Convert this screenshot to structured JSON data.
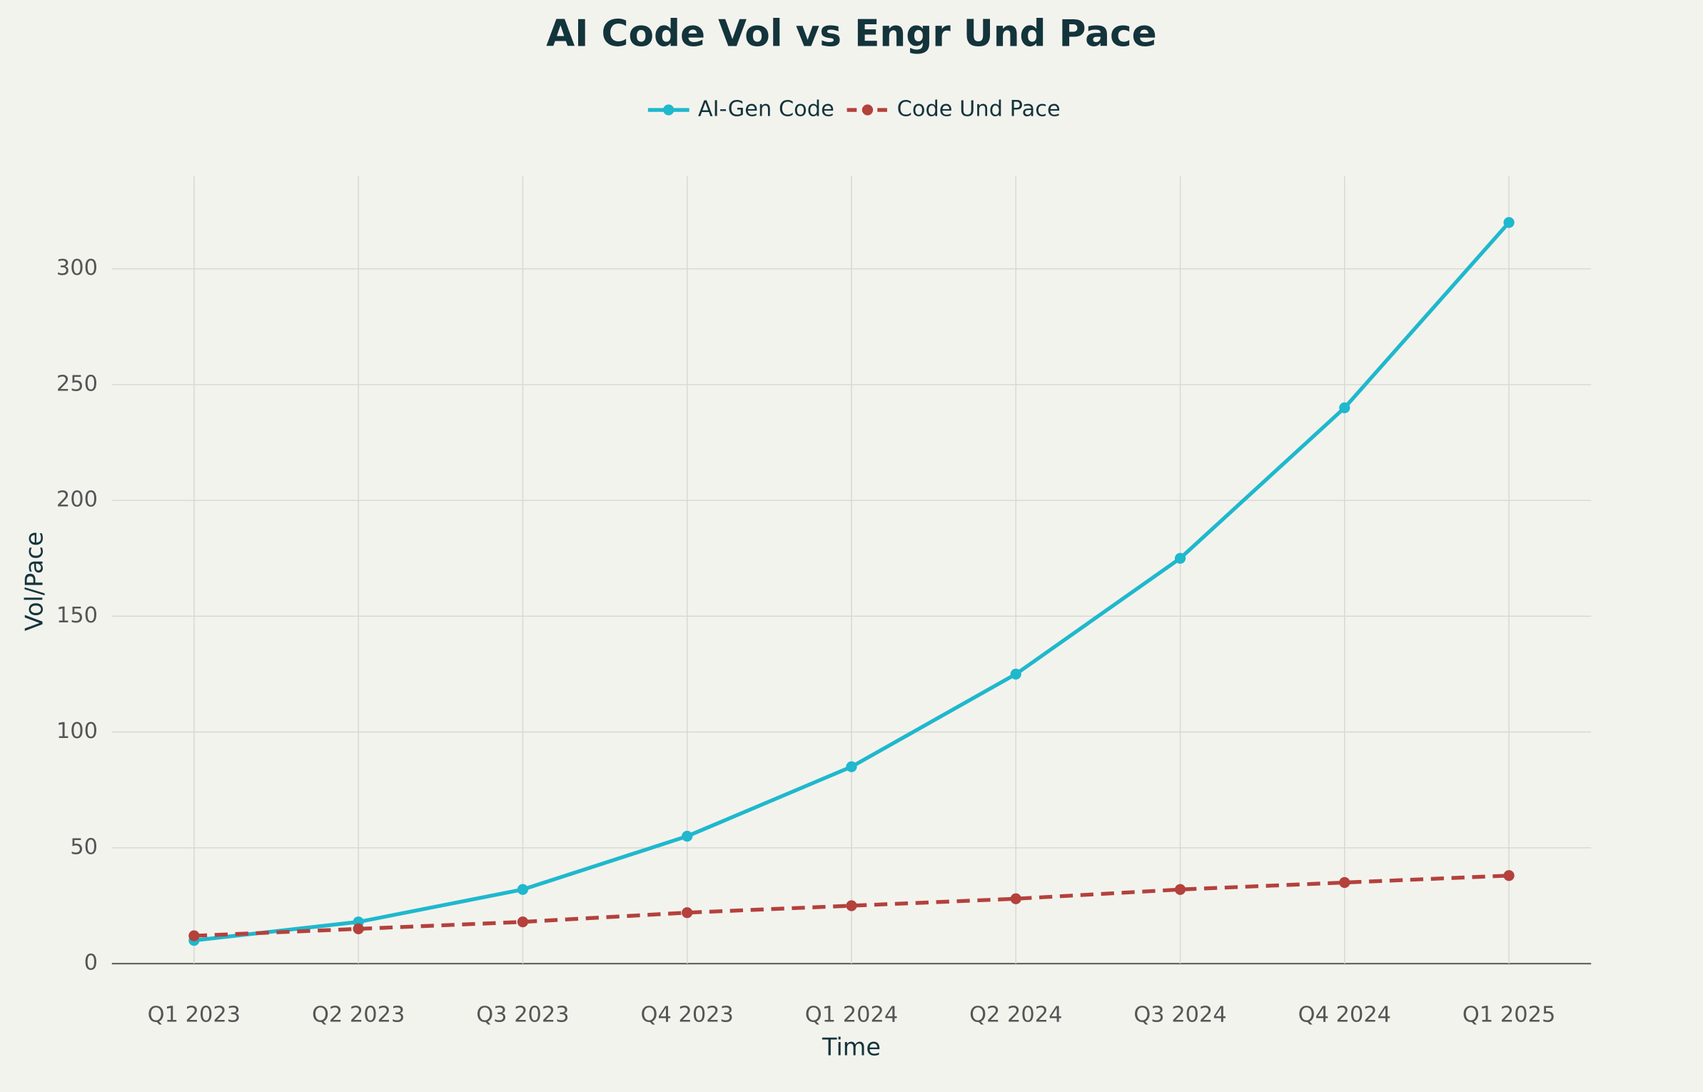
{
  "chart_data": {
    "type": "line",
    "title": "AI Code Vol vs Engr Und Pace",
    "x_label": "Time",
    "y_label": "Vol/Pace",
    "categories": [
      "Q1 2023",
      "Q2 2023",
      "Q3 2023",
      "Q4 2023",
      "Q1 2024",
      "Q2 2024",
      "Q3 2024",
      "Q4 2024",
      "Q1 2025"
    ],
    "series": [
      {
        "name": "AI-Gen Code",
        "color": "#1fb8cd",
        "line_style": "solid",
        "values": [
          10,
          18,
          32,
          55,
          85,
          125,
          175,
          240,
          320
        ]
      },
      {
        "name": "Code Und Pace",
        "color": "#b4413c",
        "line_style": "dashed",
        "values": [
          12,
          15,
          18,
          22,
          25,
          28,
          32,
          35,
          38
        ]
      }
    ],
    "ylim": [
      0,
      340
    ],
    "yticks": [
      0,
      50,
      100,
      150,
      200,
      250,
      300
    ],
    "grid": true,
    "legend": "top"
  }
}
